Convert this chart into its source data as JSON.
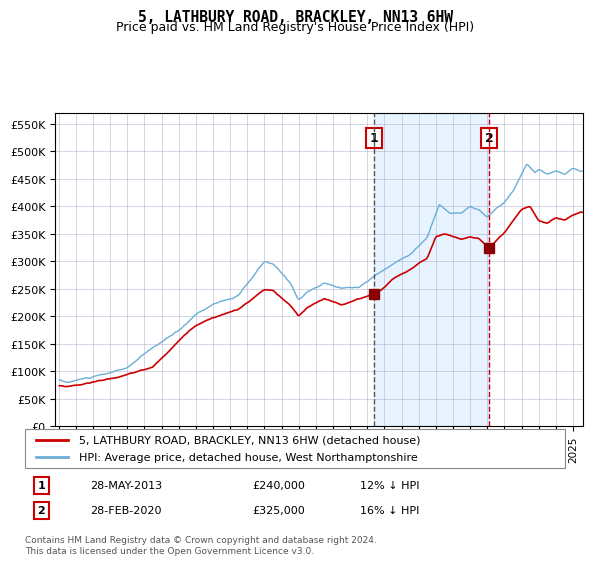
{
  "title": "5, LATHBURY ROAD, BRACKLEY, NN13 6HW",
  "subtitle": "Price paid vs. HM Land Registry's House Price Index (HPI)",
  "legend_line1": "5, LATHBURY ROAD, BRACKLEY, NN13 6HW (detached house)",
  "legend_line2": "HPI: Average price, detached house, West Northamptonshire",
  "annotation1_label": "1",
  "annotation1_date": "28-MAY-2013",
  "annotation1_price": 240000,
  "annotation1_hpi_diff": "12% ↓ HPI",
  "annotation2_label": "2",
  "annotation2_date": "28-FEB-2020",
  "annotation2_price": 325000,
  "annotation2_hpi_diff": "16% ↓ HPI",
  "footer": "Contains HM Land Registry data © Crown copyright and database right 2024.\nThis data is licensed under the Open Government Licence v3.0.",
  "hpi_color": "#6baed6",
  "price_color": "#cc0000",
  "marker_color": "#8b0000",
  "vline1_color": "#555555",
  "vline2_color": "#cc0000",
  "shade_color": "#ddeeff",
  "box_color": "#cc0000",
  "ylim": [
    0,
    570000
  ],
  "yticks": [
    0,
    50000,
    100000,
    150000,
    200000,
    250000,
    300000,
    350000,
    400000,
    450000,
    500000,
    550000
  ],
  "year_start": 1995,
  "year_end": 2025
}
